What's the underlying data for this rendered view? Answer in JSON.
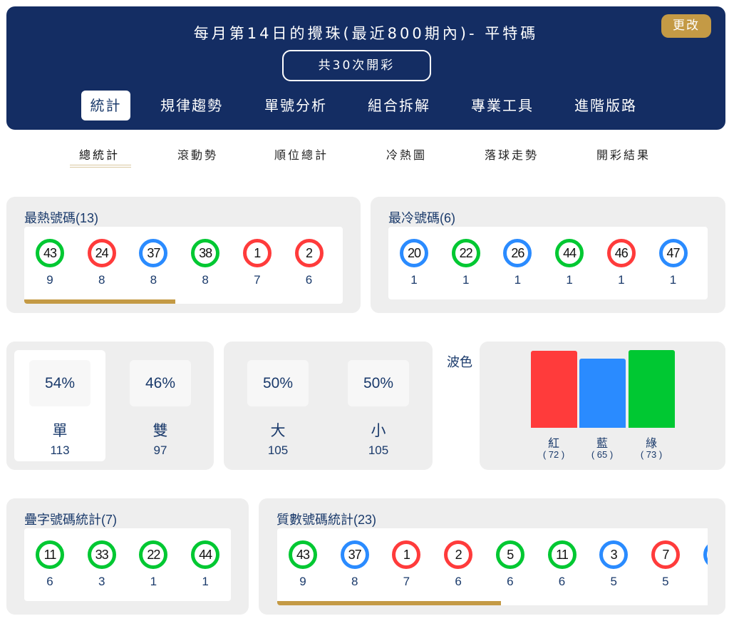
{
  "header": {
    "title": "每月第14日的攪珠(最近800期內)- 平特碼",
    "change_button": "更改",
    "draws_button": "共30次開彩",
    "tabs": [
      {
        "label": "統計",
        "active": true
      },
      {
        "label": "規律趨勢"
      },
      {
        "label": "單號分析"
      },
      {
        "label": "組合拆解"
      },
      {
        "label": "專業工具"
      },
      {
        "label": "進階版路"
      }
    ]
  },
  "subtabs": [
    {
      "label": "總統計",
      "active": true
    },
    {
      "label": "滾動勢"
    },
    {
      "label": "順位總計"
    },
    {
      "label": "冷熱圖"
    },
    {
      "label": "落球走勢"
    },
    {
      "label": "開彩結果"
    }
  ],
  "colors": {
    "red": "#ff3b3b",
    "blue": "#2a8bff",
    "green": "#00c832",
    "navy": "#142d63",
    "gold": "#c49a45"
  },
  "hot": {
    "title": "最熱號碼(13)",
    "balls": [
      {
        "n": "43",
        "c": "green",
        "count": "9"
      },
      {
        "n": "24",
        "c": "red",
        "count": "8"
      },
      {
        "n": "37",
        "c": "blue",
        "count": "8"
      },
      {
        "n": "38",
        "c": "green",
        "count": "8"
      },
      {
        "n": "1",
        "c": "red",
        "count": "7"
      },
      {
        "n": "2",
        "c": "red",
        "count": "6"
      }
    ]
  },
  "cold": {
    "title": "最冷號碼(6)",
    "balls": [
      {
        "n": "20",
        "c": "blue",
        "count": "1"
      },
      {
        "n": "22",
        "c": "green",
        "count": "1"
      },
      {
        "n": "26",
        "c": "blue",
        "count": "1"
      },
      {
        "n": "44",
        "c": "green",
        "count": "1"
      },
      {
        "n": "46",
        "c": "red",
        "count": "1"
      },
      {
        "n": "47",
        "c": "blue",
        "count": "1"
      }
    ]
  },
  "odd_even": [
    {
      "pct": "54%",
      "label": "單",
      "value": "113",
      "selected": true
    },
    {
      "pct": "46%",
      "label": "雙",
      "value": "97"
    }
  ],
  "big_small": [
    {
      "pct": "50%",
      "label": "大",
      "value": "105"
    },
    {
      "pct": "50%",
      "label": "小",
      "value": "105"
    }
  ],
  "wave": {
    "title": "波色",
    "bars": [
      {
        "label": "紅",
        "value": 72,
        "value_text": "( 72 )",
        "c": "red"
      },
      {
        "label": "藍",
        "value": 65,
        "value_text": "( 65 )",
        "c": "blue"
      },
      {
        "label": "綠",
        "value": 73,
        "value_text": "( 73 )",
        "c": "green"
      }
    ]
  },
  "doubles": {
    "title": "疊字號碼統計(7)",
    "balls": [
      {
        "n": "11",
        "c": "green",
        "count": "6"
      },
      {
        "n": "33",
        "c": "green",
        "count": "3"
      },
      {
        "n": "22",
        "c": "green",
        "count": "1"
      },
      {
        "n": "44",
        "c": "green",
        "count": "1"
      }
    ]
  },
  "primes": {
    "title": "質數號碼統計(23)",
    "balls": [
      {
        "n": "43",
        "c": "green",
        "count": "9"
      },
      {
        "n": "37",
        "c": "blue",
        "count": "8"
      },
      {
        "n": "1",
        "c": "red",
        "count": "7"
      },
      {
        "n": "2",
        "c": "red",
        "count": "6"
      },
      {
        "n": "5",
        "c": "green",
        "count": "6"
      },
      {
        "n": "11",
        "c": "green",
        "count": "6"
      },
      {
        "n": "3",
        "c": "blue",
        "count": "5"
      },
      {
        "n": "7",
        "c": "red",
        "count": "5"
      },
      {
        "n": "",
        "c": "blue",
        "count": ""
      }
    ]
  }
}
